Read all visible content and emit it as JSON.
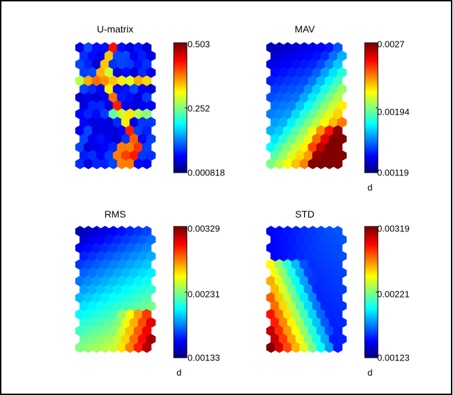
{
  "figure": {
    "border_color": "#000000",
    "background": "#ffffff"
  },
  "chart_data": [
    {
      "type": "heatmap",
      "subtype": "som-hexagonal-component-plane",
      "title": "U-matrix",
      "colormap": "jet",
      "colorbar": {
        "min_label": "0.000818",
        "mid_label": "0.252",
        "max_label": "0.503",
        "min": 0.000818,
        "max": 0.503,
        "unit": ""
      },
      "grid": {
        "rows": 15,
        "cols": 9
      },
      "pattern": "u-matrix"
    },
    {
      "type": "heatmap",
      "subtype": "som-hexagonal-component-plane",
      "title": "MAV",
      "colormap": "jet",
      "colorbar": {
        "min_label": "0.00119",
        "mid_label": "0.00194",
        "max_label": "0.0027",
        "min": 0.00119,
        "max": 0.0027,
        "unit": "d"
      },
      "grid": {
        "rows": 15,
        "cols": 9
      },
      "pattern": "mav"
    },
    {
      "type": "heatmap",
      "subtype": "som-hexagonal-component-plane",
      "title": "RMS",
      "colormap": "jet",
      "colorbar": {
        "min_label": "0.00133",
        "mid_label": "0.00231",
        "max_label": "0.00329",
        "min": 0.00133,
        "max": 0.00329,
        "unit": "d"
      },
      "grid": {
        "rows": 15,
        "cols": 9
      },
      "pattern": "rms"
    },
    {
      "type": "heatmap",
      "subtype": "som-hexagonal-component-plane",
      "title": "STD",
      "colormap": "jet",
      "colorbar": {
        "min_label": "0.00123",
        "mid_label": "0.00221",
        "max_label": "0.00319",
        "min": 0.00123,
        "max": 0.00319,
        "unit": "d"
      },
      "grid": {
        "rows": 15,
        "cols": 9
      },
      "pattern": "std"
    }
  ]
}
